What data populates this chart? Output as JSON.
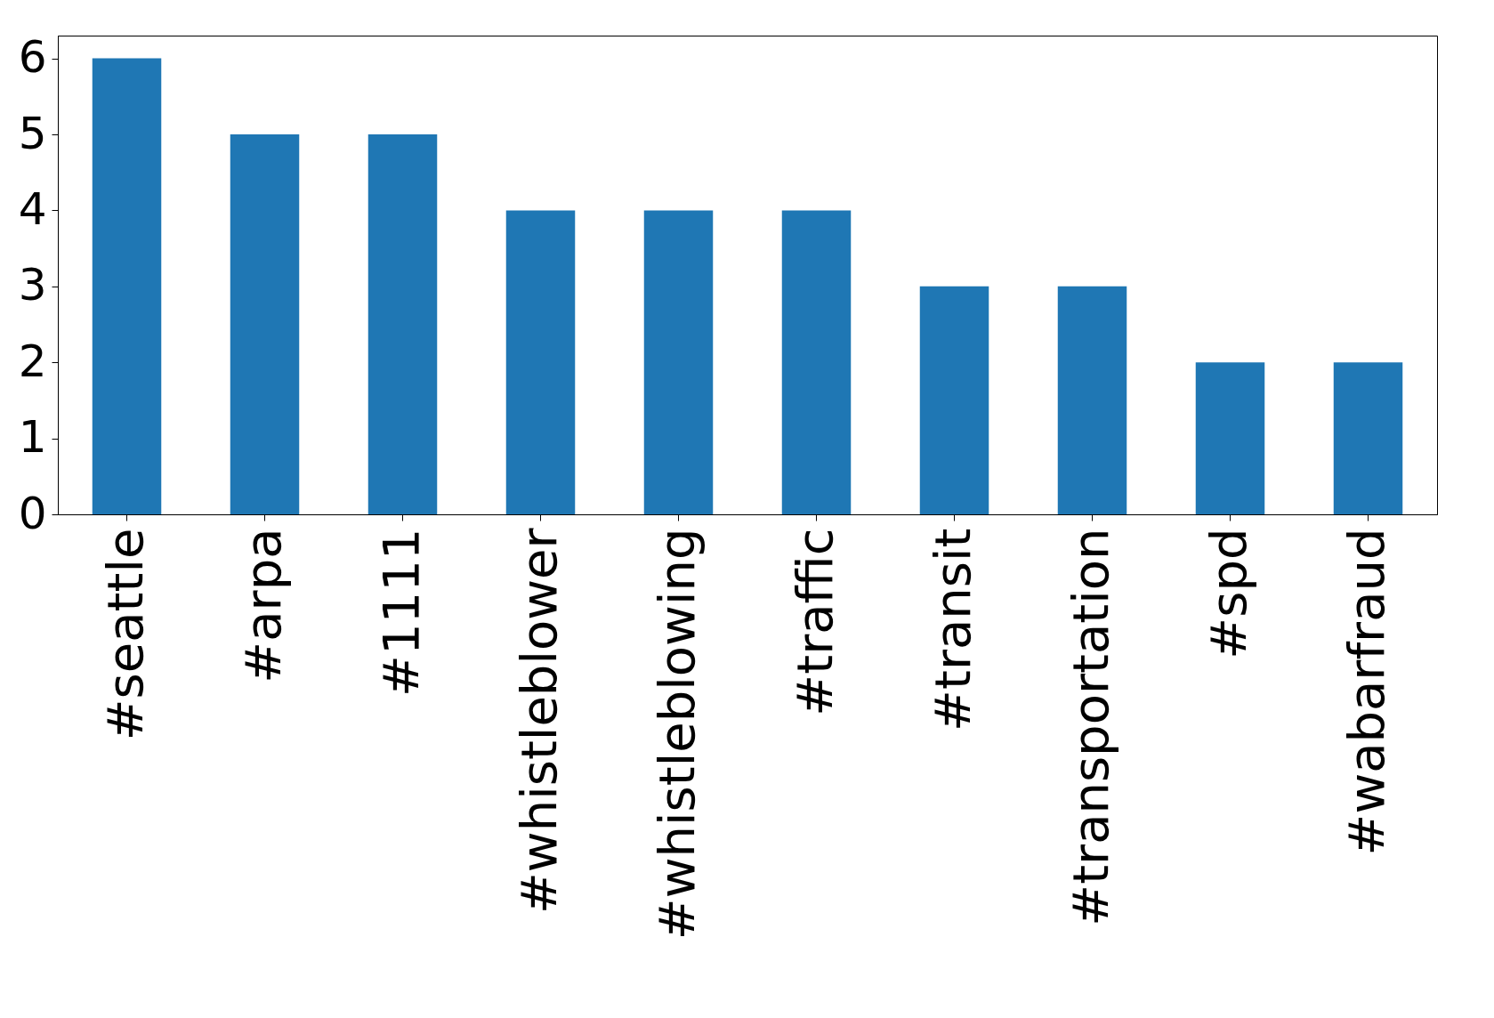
{
  "chart_data": {
    "type": "bar",
    "categories": [
      "#seattle",
      "#arpa",
      "#1111",
      "#whistleblower",
      "#whistleblowing",
      "#traffic",
      "#transit",
      "#transportation",
      "#spd",
      "#wabarfraud"
    ],
    "values": [
      6,
      5,
      5,
      4,
      4,
      4,
      3,
      3,
      2,
      2
    ],
    "color": "#1f77b4",
    "ylim": [
      0,
      6.3
    ],
    "yticks": [
      0,
      1,
      2,
      3,
      4,
      5,
      6
    ],
    "grid": false
  }
}
